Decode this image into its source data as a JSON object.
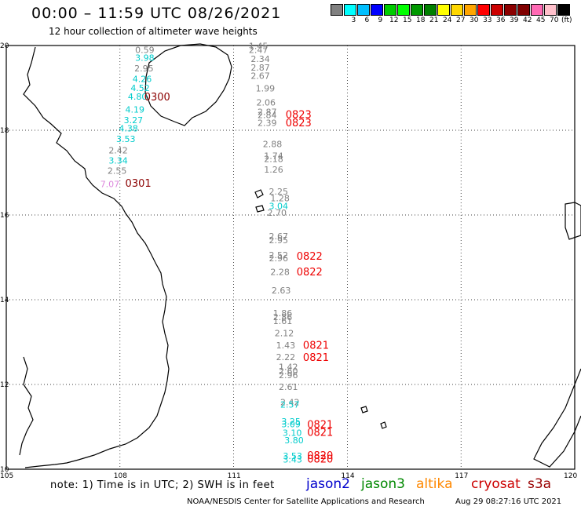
{
  "header": {
    "title": "00:00 – 11:59 UTC 08/26/2021",
    "subtitle": "12 hour collection of altimeter wave heights"
  },
  "colorbar": {
    "units": "(ft)",
    "bins": [
      {
        "label": "",
        "color": "#808080"
      },
      {
        "label": "3",
        "color": "#00ffff"
      },
      {
        "label": "6",
        "color": "#00bfff"
      },
      {
        "label": "9",
        "color": "#0000ff"
      },
      {
        "label": "12",
        "color": "#00cc00"
      },
      {
        "label": "15",
        "color": "#00ff00"
      },
      {
        "label": "18",
        "color": "#009900"
      },
      {
        "label": "21",
        "color": "#008000"
      },
      {
        "label": "24",
        "color": "#ffff00"
      },
      {
        "label": "27",
        "color": "#ffd700"
      },
      {
        "label": "30",
        "color": "#ffa500"
      },
      {
        "label": "33",
        "color": "#ff0000"
      },
      {
        "label": "36",
        "color": "#cc0000"
      },
      {
        "label": "39",
        "color": "#8b0000"
      },
      {
        "label": "42",
        "color": "#800000"
      },
      {
        "label": "45",
        "color": "#ff69b4"
      },
      {
        "label": "70",
        "color": "#ffc0cb"
      },
      {
        "label": "",
        "color": "#000000"
      }
    ]
  },
  "map": {
    "lat_labels": [
      "20",
      "18",
      "16",
      "14",
      "12",
      "10"
    ],
    "lon_labels": [
      "105",
      "108",
      "111",
      "114",
      "117",
      "120"
    ],
    "observations": [
      {
        "lon": 108.4,
        "lat": 19.82,
        "text": "0.59",
        "color": "#808080"
      },
      {
        "lon": 108.4,
        "lat": 19.64,
        "text": "3.98",
        "color": "#00cccc"
      },
      {
        "lon": 108.38,
        "lat": 19.39,
        "text": "2.95",
        "color": "#808080"
      },
      {
        "lon": 108.33,
        "lat": 19.14,
        "text": "4.26",
        "color": "#00cccc"
      },
      {
        "lon": 108.28,
        "lat": 18.93,
        "text": "4.52",
        "color": "#00cccc"
      },
      {
        "lon": 108.21,
        "lat": 18.72,
        "text": "4.80",
        "color": "#00cccc"
      },
      {
        "lon": 108.14,
        "lat": 18.42,
        "text": "4.19",
        "color": "#00cccc"
      },
      {
        "lon": 108.1,
        "lat": 18.17,
        "text": "3.27",
        "color": "#00cccc"
      },
      {
        "lon": 107.97,
        "lat": 17.97,
        "text": "4.38",
        "color": "#00cccc"
      },
      {
        "lon": 107.9,
        "lat": 17.72,
        "text": "3.53",
        "color": "#00cccc"
      },
      {
        "lon": 107.7,
        "lat": 17.45,
        "text": "2.42",
        "color": "#808080"
      },
      {
        "lon": 107.7,
        "lat": 17.21,
        "text": "3.34",
        "color": "#00cccc"
      },
      {
        "lon": 107.67,
        "lat": 16.97,
        "text": "2.55",
        "color": "#808080"
      },
      {
        "lon": 107.48,
        "lat": 16.66,
        "text": "7.07",
        "color": "#dd88dd"
      },
      {
        "lon": 111.4,
        "lat": 19.92,
        "text": "1.45",
        "color": "#808080"
      },
      {
        "lon": 111.4,
        "lat": 19.82,
        "text": "2.47",
        "color": "#808080"
      },
      {
        "lon": 111.45,
        "lat": 19.61,
        "text": "2.34",
        "color": "#808080"
      },
      {
        "lon": 111.45,
        "lat": 19.41,
        "text": "2.87",
        "color": "#808080"
      },
      {
        "lon": 111.45,
        "lat": 19.21,
        "text": "2.67",
        "color": "#808080"
      },
      {
        "lon": 111.58,
        "lat": 18.92,
        "text": "1.99",
        "color": "#808080"
      },
      {
        "lon": 111.6,
        "lat": 18.58,
        "text": "2.06",
        "color": "#808080"
      },
      {
        "lon": 111.63,
        "lat": 18.36,
        "text": "2.87",
        "color": "#808080"
      },
      {
        "lon": 111.63,
        "lat": 18.29,
        "text": "2.84",
        "color": "#808080"
      },
      {
        "lon": 111.63,
        "lat": 18.1,
        "text": "2.39",
        "color": "#808080"
      },
      {
        "lon": 111.77,
        "lat": 17.6,
        "text": "2.88",
        "color": "#808080"
      },
      {
        "lon": 111.8,
        "lat": 17.32,
        "text": "1.74",
        "color": "#808080"
      },
      {
        "lon": 111.8,
        "lat": 17.25,
        "text": "2.18",
        "color": "#808080"
      },
      {
        "lon": 111.8,
        "lat": 17.0,
        "text": "1.26",
        "color": "#808080"
      },
      {
        "lon": 111.93,
        "lat": 16.48,
        "text": "2.25",
        "color": "#808080"
      },
      {
        "lon": 111.97,
        "lat": 16.32,
        "text": "1.28",
        "color": "#808080"
      },
      {
        "lon": 111.93,
        "lat": 16.14,
        "text": "3.04",
        "color": "#00cccc"
      },
      {
        "lon": 111.89,
        "lat": 15.98,
        "text": "2.70",
        "color": "#808080"
      },
      {
        "lon": 111.93,
        "lat": 15.43,
        "text": "2.67",
        "color": "#808080"
      },
      {
        "lon": 111.93,
        "lat": 15.33,
        "text": "2.95",
        "color": "#808080"
      },
      {
        "lon": 111.93,
        "lat": 14.98,
        "text": "2.52",
        "color": "#808080"
      },
      {
        "lon": 111.93,
        "lat": 14.91,
        "text": "2.96",
        "color": "#808080"
      },
      {
        "lon": 111.97,
        "lat": 14.58,
        "text": "2.28",
        "color": "#808080"
      },
      {
        "lon": 112.0,
        "lat": 14.15,
        "text": "2.63",
        "color": "#808080"
      },
      {
        "lon": 112.04,
        "lat": 13.61,
        "text": "1.86",
        "color": "#808080"
      },
      {
        "lon": 112.04,
        "lat": 13.52,
        "text": "2.86",
        "color": "#808080"
      },
      {
        "lon": 112.04,
        "lat": 13.43,
        "text": "1.61",
        "color": "#808080"
      },
      {
        "lon": 112.08,
        "lat": 13.14,
        "text": "2.12",
        "color": "#808080"
      },
      {
        "lon": 112.12,
        "lat": 12.85,
        "text": "1.43",
        "color": "#808080"
      },
      {
        "lon": 112.12,
        "lat": 12.57,
        "text": "2.22",
        "color": "#808080"
      },
      {
        "lon": 112.19,
        "lat": 12.34,
        "text": "1.42",
        "color": "#808080"
      },
      {
        "lon": 112.19,
        "lat": 12.24,
        "text": "2.60",
        "color": "#808080"
      },
      {
        "lon": 112.19,
        "lat": 12.15,
        "text": "2.96",
        "color": "#808080"
      },
      {
        "lon": 112.19,
        "lat": 11.87,
        "text": "2.61",
        "color": "#808080"
      },
      {
        "lon": 112.23,
        "lat": 11.51,
        "text": "2.42",
        "color": "#808080"
      },
      {
        "lon": 112.23,
        "lat": 11.45,
        "text": "2.57",
        "color": "#00cccc"
      },
      {
        "lon": 112.26,
        "lat": 11.06,
        "text": "3.25",
        "color": "#00cccc"
      },
      {
        "lon": 112.26,
        "lat": 10.99,
        "text": "3.09",
        "color": "#00cccc"
      },
      {
        "lon": 112.29,
        "lat": 10.79,
        "text": "3.10",
        "color": "#00cccc"
      },
      {
        "lon": 112.34,
        "lat": 10.61,
        "text": "3.80",
        "color": "#00cccc"
      },
      {
        "lon": 112.3,
        "lat": 10.24,
        "text": "3.53",
        "color": "#00cccc"
      },
      {
        "lon": 112.3,
        "lat": 10.16,
        "text": "3.43",
        "color": "#00cccc"
      }
    ],
    "times": [
      {
        "lon": 108.64,
        "lat": 18.7,
        "text": "0300",
        "color": "#8b0000"
      },
      {
        "lon": 108.14,
        "lat": 16.67,
        "text": "0301",
        "color": "#8b0000"
      },
      {
        "lon": 112.37,
        "lat": 18.29,
        "text": "0823",
        "color": "#ee0000"
      },
      {
        "lon": 112.37,
        "lat": 18.09,
        "text": "0823",
        "color": "#ee0000"
      },
      {
        "lon": 112.66,
        "lat": 14.94,
        "text": "0822",
        "color": "#ee0000"
      },
      {
        "lon": 112.66,
        "lat": 14.57,
        "text": "0822",
        "color": "#ee0000"
      },
      {
        "lon": 112.83,
        "lat": 12.84,
        "text": "0821",
        "color": "#ee0000"
      },
      {
        "lon": 112.83,
        "lat": 12.56,
        "text": "0821",
        "color": "#ee0000"
      },
      {
        "lon": 112.94,
        "lat": 10.97,
        "text": "0821",
        "color": "#ee0000"
      },
      {
        "lon": 112.94,
        "lat": 10.79,
        "text": "0821",
        "color": "#ee0000"
      },
      {
        "lon": 112.94,
        "lat": 10.24,
        "text": "0820",
        "color": "#ee0000"
      },
      {
        "lon": 112.94,
        "lat": 10.16,
        "text": "0820",
        "color": "#ee0000"
      }
    ]
  },
  "footer": {
    "note": "note:  1) Time is in UTC;  2) SWH is in feet",
    "satellites": [
      {
        "name": "jason2",
        "color": "#0000cc"
      },
      {
        "name": "jason3",
        "color": "#008800"
      },
      {
        "name": "altika",
        "color": "#ff8800"
      },
      {
        "name": "cryosat",
        "color": "#cc0000"
      },
      {
        "name": "s3a",
        "color": "#990000"
      }
    ],
    "credit": "NOAA/NESDIS Center for Satellite Applications and Research",
    "generated": "Aug 29 08:27:16 UTC 2021"
  }
}
